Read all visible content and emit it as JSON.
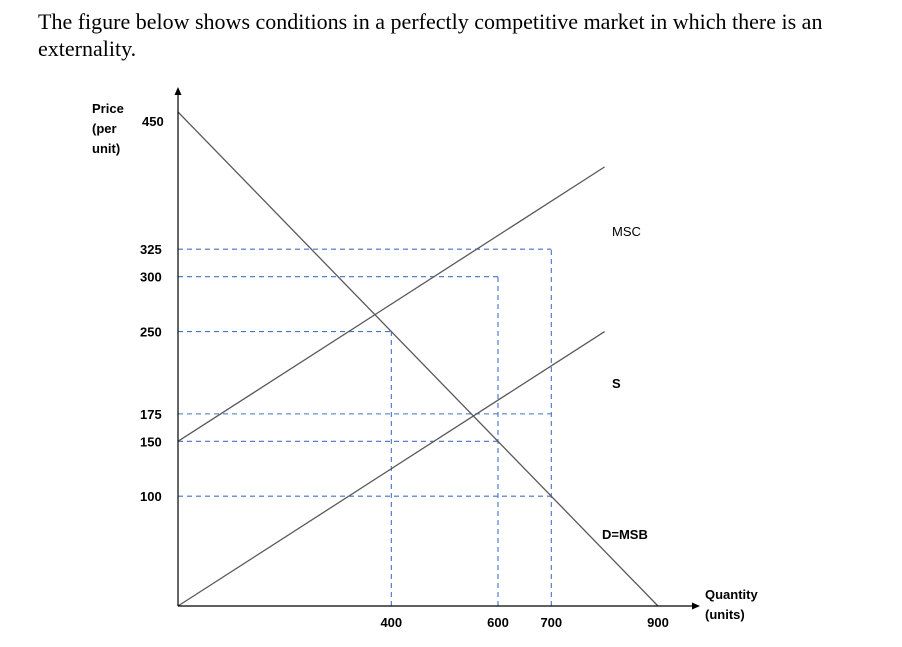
{
  "intro_text": "The figure below shows conditions in a perfectly competitive market in which there is an externality.",
  "colors": {
    "curve": "#595959",
    "guide": "#4472c4",
    "axis": "#000000"
  },
  "chart_data": {
    "type": "line",
    "xlabel": "Quantity (units)",
    "ylabel": "Price (per unit)",
    "xlim": [
      0,
      900
    ],
    "ylim": [
      0,
      450
    ],
    "x_ticks": [
      400,
      600,
      700,
      900
    ],
    "y_ticks": [
      100,
      150,
      175,
      250,
      300,
      325,
      450
    ],
    "grid": false,
    "series": [
      {
        "name": "MSC",
        "points": [
          [
            0,
            150
          ],
          [
            800,
            400
          ]
        ]
      },
      {
        "name": "S",
        "points": [
          [
            0,
            0
          ],
          [
            800,
            250
          ]
        ]
      },
      {
        "name": "D=MSB",
        "points": [
          [
            0,
            450
          ],
          [
            900,
            0
          ]
        ]
      }
    ],
    "guides": [
      {
        "y": 325,
        "x_end": 700
      },
      {
        "y": 300,
        "x_end": 600
      },
      {
        "y": 250,
        "x_end": 400
      },
      {
        "y": 175,
        "x_end": 700
      },
      {
        "y": 150,
        "x_end": 600
      },
      {
        "y": 100,
        "x_end": 700
      },
      {
        "x": 400,
        "y_top": 250
      },
      {
        "x": 600,
        "y_top": 300
      },
      {
        "x": 700,
        "y_top": 325
      }
    ]
  }
}
